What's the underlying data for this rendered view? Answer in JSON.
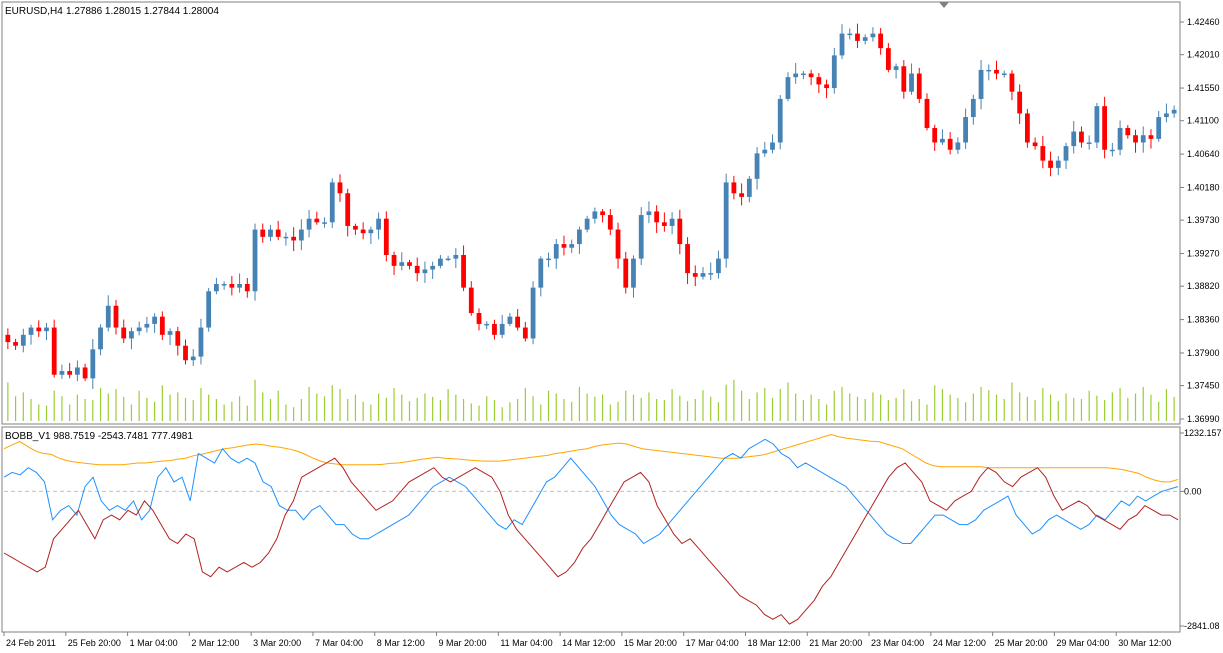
{
  "header": {
    "symbol_label": "EURUSD,H4",
    "ohlc_values": "1.27886 1.28015 1.27844 1.28004"
  },
  "indicator": {
    "label": "BOBB_V1 988.7519 -2543.7481 777.4981"
  },
  "colors": {
    "bull": "#4682b4",
    "bear": "#ff0000",
    "volume": "#9acd32",
    "ind_orange": "#ffa500",
    "ind_blue": "#1e90ff",
    "ind_red": "#b22222",
    "frame": "#808080",
    "zero_line": "#c0c0c0"
  },
  "chart_data": [
    {
      "type": "candlestick",
      "symbol": "EURUSD",
      "timeframe": "H4",
      "ylim": [
        1.3699,
        1.4246
      ],
      "y_ticks": [
        "1.42460",
        "1.42010",
        "1.41550",
        "1.41100",
        "1.40640",
        "1.40180",
        "1.39730",
        "1.39270",
        "1.38820",
        "1.38360",
        "1.37900",
        "1.37450",
        "1.36990"
      ],
      "x_ticks": [
        "24 Feb 2011",
        "25 Feb 20:00",
        "1 Mar 04:00",
        "2 Mar 12:00",
        "3 Mar 20:00",
        "7 Mar 04:00",
        "8 Mar 12:00",
        "9 Mar 20:00",
        "11 Mar 04:00",
        "14 Mar 12:00",
        "15 Mar 20:00",
        "17 Mar 04:00",
        "18 Mar 12:00",
        "21 Mar 20:00",
        "23 Mar 04:00",
        "24 Mar 12:00",
        "25 Mar 20:00",
        "29 Mar 04:00",
        "30 Mar 12:00"
      ],
      "close": [
        1.3805,
        1.38,
        1.3815,
        1.3825,
        1.382,
        1.3825,
        1.376,
        1.3765,
        1.376,
        1.377,
        1.3755,
        1.3795,
        1.3825,
        1.3855,
        1.3825,
        1.381,
        1.382,
        1.3825,
        1.383,
        1.384,
        1.3815,
        1.382,
        1.38,
        1.378,
        1.3785,
        1.3825,
        1.3875,
        1.3885,
        1.3885,
        1.388,
        1.3885,
        1.3875,
        1.396,
        1.395,
        1.396,
        1.395,
        1.395,
        1.3945,
        1.396,
        1.3975,
        1.397,
        1.397,
        1.4025,
        1.401,
        1.3965,
        1.396,
        1.3955,
        1.396,
        1.3975,
        1.3925,
        1.391,
        1.3915,
        1.391,
        1.39,
        1.3905,
        1.391,
        1.392,
        1.392,
        1.3925,
        1.388,
        1.3845,
        1.383,
        1.383,
        1.3815,
        1.383,
        1.384,
        1.3825,
        1.381,
        1.388,
        1.392,
        1.392,
        1.394,
        1.3935,
        1.394,
        1.396,
        1.3975,
        1.3985,
        1.398,
        1.396,
        1.392,
        1.388,
        1.392,
        1.398,
        1.3985,
        1.397,
        1.3965,
        1.3975,
        1.394,
        1.39,
        1.3895,
        1.39,
        1.39,
        1.392,
        1.4025,
        1.401,
        1.4005,
        1.403,
        1.4065,
        1.407,
        1.408,
        1.414,
        1.417,
        1.4175,
        1.4175,
        1.417,
        1.416,
        1.4155,
        1.42,
        1.423,
        1.423,
        1.422,
        1.4225,
        1.423,
        1.421,
        1.418,
        1.4185,
        1.415,
        1.4175,
        1.414,
        1.41,
        1.408,
        1.4085,
        1.407,
        1.408,
        1.4115,
        1.414,
        1.418,
        1.418,
        1.4175,
        1.4175,
        1.415,
        1.412,
        1.408,
        1.4075,
        1.4055,
        1.4045,
        1.4055,
        1.4075,
        1.4095,
        1.408,
        1.408,
        1.413,
        1.407,
        1.407,
        1.41,
        1.409,
        1.408,
        1.409,
        1.4085,
        1.4115,
        1.412,
        1.4125
      ]
    },
    {
      "type": "bar",
      "name": "volume",
      "values_relative": [
        0.7,
        0.45,
        0.52,
        0.4,
        0.3,
        0.28,
        0.55,
        0.45,
        0.3,
        0.48,
        0.4,
        0.38,
        0.6,
        0.5,
        0.58,
        0.44,
        0.3,
        0.55,
        0.42,
        0.35,
        0.65,
        0.48,
        0.52,
        0.42,
        0.38,
        0.6,
        0.48,
        0.4,
        0.3,
        0.35,
        0.45,
        0.28,
        0.75,
        0.52,
        0.4,
        0.55,
        0.3,
        0.25,
        0.4,
        0.62,
        0.5,
        0.45,
        0.65,
        0.58,
        0.4,
        0.48,
        0.35,
        0.3,
        0.5,
        0.42,
        0.6,
        0.48,
        0.36,
        0.42,
        0.5,
        0.44,
        0.38,
        0.58,
        0.48,
        0.4,
        0.32,
        0.28,
        0.45,
        0.38,
        0.25,
        0.34,
        0.4,
        0.6,
        0.45,
        0.3,
        0.55,
        0.5,
        0.4,
        0.35,
        0.62,
        0.5,
        0.44,
        0.48,
        0.3,
        0.35,
        0.55,
        0.48,
        0.42,
        0.52,
        0.4,
        0.38,
        0.58,
        0.46,
        0.36,
        0.4,
        0.56,
        0.44,
        0.34,
        0.66,
        0.75,
        0.55,
        0.4,
        0.52,
        0.6,
        0.42,
        0.58,
        0.7,
        0.5,
        0.38,
        0.48,
        0.4,
        0.3,
        0.55,
        0.62,
        0.5,
        0.44,
        0.4,
        0.52,
        0.48,
        0.38,
        0.42,
        0.58,
        0.36,
        0.4,
        0.3,
        0.65,
        0.58,
        0.48,
        0.42,
        0.34,
        0.5,
        0.62,
        0.56,
        0.48,
        0.4,
        0.7,
        0.52,
        0.44,
        0.38,
        0.6,
        0.48,
        0.36,
        0.5,
        0.42,
        0.4,
        0.55,
        0.46,
        0.38,
        0.52,
        0.6,
        0.42,
        0.5,
        0.62,
        0.48,
        0.35,
        0.58,
        0.44,
        0.62,
        0.28
      ]
    },
    {
      "type": "line",
      "name": "BOBB_V1",
      "ylim": [
        -2841.08,
        1232.157
      ],
      "y_ticks": [
        "1232.157",
        "0.00",
        "-2841.08"
      ],
      "series_orange": [
        900,
        980,
        1050,
        950,
        850,
        800,
        780,
        700,
        650,
        620,
        600,
        580,
        560,
        560,
        560,
        560,
        580,
        600,
        600,
        620,
        640,
        650,
        680,
        700,
        750,
        780,
        820,
        860,
        900,
        920,
        950,
        980,
        1000,
        980,
        950,
        930,
        900,
        860,
        800,
        720,
        650,
        600,
        580,
        560,
        560,
        560,
        560,
        560,
        570,
        590,
        600,
        620,
        650,
        680,
        700,
        720,
        700,
        690,
        680,
        660,
        650,
        640,
        640,
        640,
        660,
        680,
        700,
        720,
        740,
        760,
        800,
        820,
        850,
        880,
        900,
        950,
        980,
        1000,
        1020,
        1000,
        950,
        900,
        880,
        860,
        840,
        820,
        800,
        780,
        760,
        740,
        720,
        700,
        700,
        700,
        720,
        740,
        760,
        800,
        850,
        900,
        950,
        1000,
        1050,
        1100,
        1150,
        1200,
        1150,
        1120,
        1100,
        1080,
        1060,
        1050,
        1000,
        950,
        900,
        800,
        700,
        600,
        540,
        520,
        520,
        520,
        520,
        520,
        520,
        500,
        500,
        500,
        500,
        500,
        500,
        500,
        500,
        500,
        500,
        500,
        500,
        500,
        500,
        500,
        500,
        480,
        460,
        420,
        380,
        300,
        240,
        200,
        200,
        250
      ],
      "series_blue": [
        300,
        400,
        350,
        500,
        400,
        200,
        -600,
        -400,
        -300,
        -500,
        100,
        300,
        -200,
        -400,
        -300,
        -400,
        -200,
        -600,
        -400,
        300,
        500,
        200,
        300,
        -200,
        800,
        700,
        600,
        900,
        700,
        600,
        700,
        600,
        200,
        100,
        -300,
        -400,
        -400,
        -600,
        -400,
        -300,
        -500,
        -700,
        -700,
        -900,
        -1000,
        -1000,
        -900,
        -800,
        -700,
        -600,
        -500,
        -300,
        -100,
        100,
        200,
        300,
        200,
        100,
        -100,
        -300,
        -500,
        -700,
        -800,
        -600,
        -700,
        -400,
        -100,
        200,
        300,
        500,
        700,
        500,
        300,
        100,
        -200,
        -500,
        -700,
        -800,
        -900,
        -1100,
        -1000,
        -900,
        -700,
        -500,
        -300,
        -100,
        100,
        300,
        500,
        700,
        800,
        700,
        900,
        1000,
        1100,
        1000,
        800,
        700,
        500,
        600,
        500,
        400,
        300,
        200,
        100,
        -100,
        -300,
        -500,
        -700,
        -900,
        -1000,
        -1100,
        -1100,
        -900,
        -700,
        -500,
        -500,
        -600,
        -700,
        -700,
        -600,
        -400,
        -300,
        -200,
        -100,
        -500,
        -700,
        -900,
        -800,
        -600,
        -500,
        -600,
        -700,
        -800,
        -700,
        -500,
        -600,
        -400,
        -200,
        -300,
        -100,
        -200,
        -100,
        0,
        50,
        100
      ]
    },
    {
      "type": "line",
      "name": "BOBB_V1 lower",
      "series_red": [
        -1300,
        -1400,
        -1500,
        -1600,
        -1700,
        -1600,
        -1000,
        -800,
        -600,
        -400,
        -700,
        -1000,
        -600,
        -500,
        -600,
        -400,
        -500,
        -200,
        -400,
        -700,
        -1000,
        -1100,
        -900,
        -1000,
        -1700,
        -1800,
        -1600,
        -1700,
        -1600,
        -1500,
        -1600,
        -1500,
        -1300,
        -1000,
        -500,
        -200,
        300,
        400,
        500,
        600,
        700,
        500,
        200,
        0,
        -200,
        -400,
        -300,
        -200,
        0,
        200,
        300,
        400,
        500,
        300,
        200,
        300,
        400,
        500,
        400,
        300,
        0,
        -500,
        -800,
        -1000,
        -1200,
        -1400,
        -1600,
        -1800,
        -1700,
        -1500,
        -1200,
        -1000,
        -700,
        -400,
        -100,
        200,
        300,
        400,
        200,
        -300,
        -600,
        -900,
        -1100,
        -1000,
        -1200,
        -1400,
        -1600,
        -1800,
        -2000,
        -2200,
        -2300,
        -2400,
        -2600,
        -2700,
        -2600,
        -2800,
        -2700,
        -2500,
        -2300,
        -2000,
        -1800,
        -1500,
        -1200,
        -900,
        -600,
        -300,
        0,
        300,
        500,
        600,
        400,
        200,
        -200,
        -300,
        -400,
        -200,
        -100,
        0,
        300,
        500,
        400,
        200,
        100,
        300,
        400,
        500,
        300,
        -100,
        -400,
        -300,
        -200,
        -300,
        -500,
        -600,
        -700,
        -800,
        -600,
        -500,
        -300,
        -400,
        -500,
        -500,
        -600
      ]
    }
  ]
}
